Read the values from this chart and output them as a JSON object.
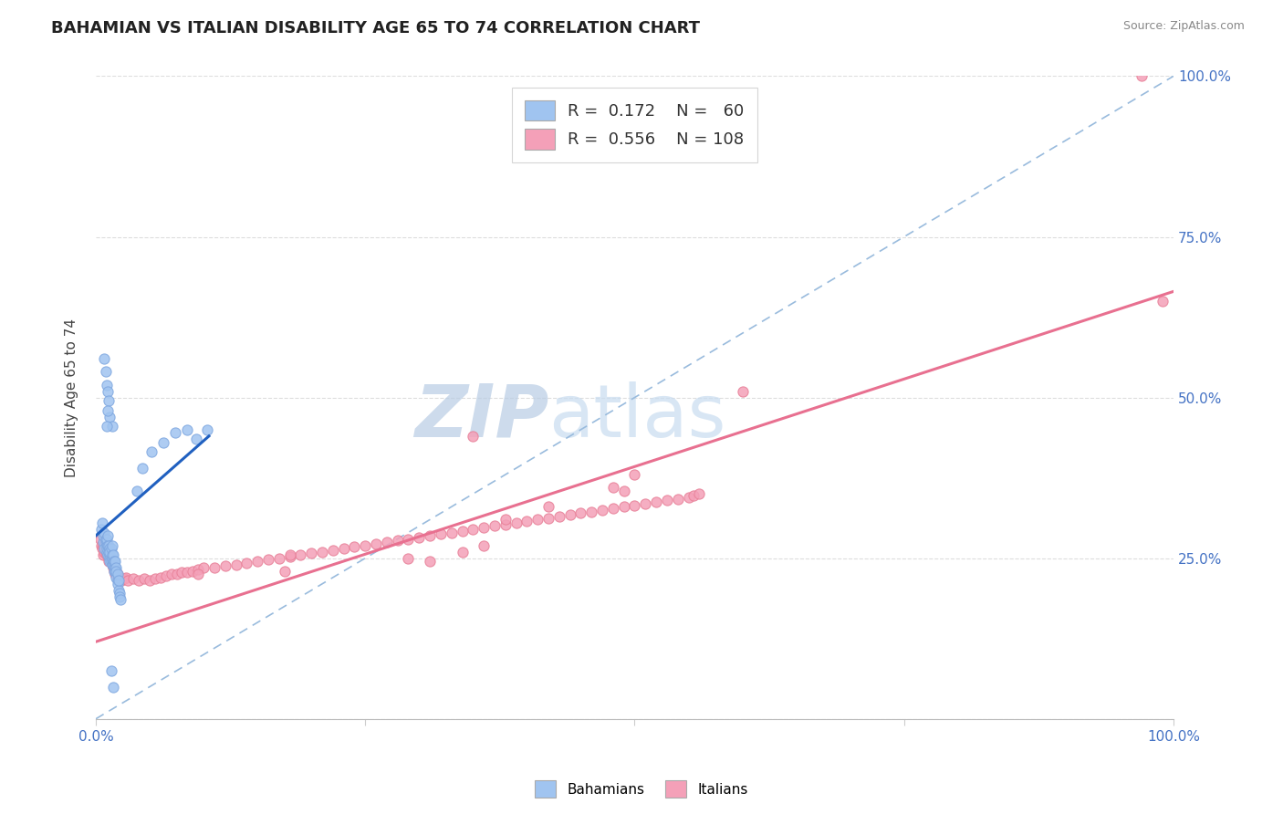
{
  "title": "BAHAMIAN VS ITALIAN DISABILITY AGE 65 TO 74 CORRELATION CHART",
  "source": "Source: ZipAtlas.com",
  "ylabel": "Disability Age 65 to 74",
  "xlim": [
    0.0,
    1.0
  ],
  "ylim": [
    0.0,
    1.0
  ],
  "legend_blue_R": "0.172",
  "legend_blue_N": "60",
  "legend_pink_R": "0.556",
  "legend_pink_N": "108",
  "blue_color": "#A0C4F0",
  "pink_color": "#F4A0B8",
  "blue_edge_color": "#80A8E0",
  "pink_edge_color": "#E88098",
  "blue_line_color": "#2060C0",
  "pink_line_color": "#E87090",
  "ref_line_color": "#99BBDD",
  "watermark_color": "#C8DCF0",
  "background_color": "#FFFFFF",
  "title_fontsize": 13,
  "grid_color": "#DDDDDD",
  "tick_color": "#4472C4",
  "blue_trend_x0": 0.0,
  "blue_trend_y0": 0.285,
  "blue_trend_x1": 0.105,
  "blue_trend_y1": 0.44,
  "pink_trend_x0": 0.0,
  "pink_trend_y0": 0.12,
  "pink_trend_x1": 1.0,
  "pink_trend_y1": 0.665,
  "blue_scatter_x": [
    0.005,
    0.006,
    0.007,
    0.007,
    0.008,
    0.008,
    0.009,
    0.009,
    0.01,
    0.01,
    0.01,
    0.01,
    0.011,
    0.011,
    0.011,
    0.012,
    0.012,
    0.012,
    0.013,
    0.013,
    0.013,
    0.013,
    0.013,
    0.014,
    0.014,
    0.014,
    0.015,
    0.015,
    0.015,
    0.015,
    0.016,
    0.016,
    0.016,
    0.017,
    0.017,
    0.017,
    0.018,
    0.018,
    0.018,
    0.019,
    0.019,
    0.019,
    0.02,
    0.02,
    0.02,
    0.021,
    0.021,
    0.022,
    0.022,
    0.023,
    0.038,
    0.043,
    0.052,
    0.063,
    0.074,
    0.085,
    0.093,
    0.103,
    0.016,
    0.014
  ],
  "blue_scatter_y": [
    0.295,
    0.305,
    0.275,
    0.285,
    0.265,
    0.29,
    0.275,
    0.28,
    0.27,
    0.28,
    0.26,
    0.265,
    0.27,
    0.255,
    0.285,
    0.265,
    0.26,
    0.27,
    0.255,
    0.265,
    0.25,
    0.245,
    0.26,
    0.25,
    0.245,
    0.265,
    0.24,
    0.25,
    0.255,
    0.27,
    0.245,
    0.24,
    0.255,
    0.235,
    0.245,
    0.23,
    0.235,
    0.23,
    0.245,
    0.235,
    0.22,
    0.23,
    0.215,
    0.225,
    0.21,
    0.2,
    0.215,
    0.195,
    0.19,
    0.185,
    0.355,
    0.39,
    0.415,
    0.43,
    0.445,
    0.45,
    0.435,
    0.45,
    0.05,
    0.075
  ],
  "blue_outlier_x": [
    0.008,
    0.01,
    0.011,
    0.012,
    0.013,
    0.015,
    0.009,
    0.011,
    0.01
  ],
  "blue_outlier_y": [
    0.56,
    0.52,
    0.51,
    0.495,
    0.47,
    0.455,
    0.54,
    0.48,
    0.455
  ],
  "pink_scatter_x": [
    0.004,
    0.005,
    0.006,
    0.007,
    0.007,
    0.008,
    0.008,
    0.009,
    0.009,
    0.01,
    0.01,
    0.01,
    0.011,
    0.011,
    0.012,
    0.012,
    0.013,
    0.013,
    0.014,
    0.014,
    0.015,
    0.016,
    0.017,
    0.018,
    0.019,
    0.02,
    0.022,
    0.024,
    0.026,
    0.028,
    0.03,
    0.035,
    0.04,
    0.045,
    0.05,
    0.055,
    0.06,
    0.065,
    0.07,
    0.075,
    0.08,
    0.085,
    0.09,
    0.095,
    0.1,
    0.11,
    0.12,
    0.13,
    0.14,
    0.15,
    0.16,
    0.17,
    0.18,
    0.19,
    0.2,
    0.21,
    0.22,
    0.23,
    0.24,
    0.25,
    0.26,
    0.27,
    0.28,
    0.29,
    0.3,
    0.31,
    0.32,
    0.33,
    0.34,
    0.35,
    0.36,
    0.37,
    0.38,
    0.39,
    0.4,
    0.41,
    0.42,
    0.43,
    0.44,
    0.45,
    0.46,
    0.47,
    0.48,
    0.49,
    0.5,
    0.51,
    0.52,
    0.53,
    0.54,
    0.55,
    0.555,
    0.56,
    0.48,
    0.49,
    0.5,
    0.42,
    0.38,
    0.36,
    0.34,
    0.31,
    0.29,
    0.18,
    0.175,
    0.095,
    0.97,
    0.99,
    0.6,
    0.35
  ],
  "pink_scatter_y": [
    0.28,
    0.27,
    0.265,
    0.255,
    0.27,
    0.26,
    0.275,
    0.26,
    0.265,
    0.255,
    0.265,
    0.27,
    0.255,
    0.26,
    0.25,
    0.245,
    0.255,
    0.26,
    0.245,
    0.25,
    0.24,
    0.235,
    0.23,
    0.225,
    0.23,
    0.225,
    0.22,
    0.215,
    0.218,
    0.22,
    0.215,
    0.218,
    0.215,
    0.218,
    0.215,
    0.218,
    0.22,
    0.222,
    0.225,
    0.225,
    0.228,
    0.228,
    0.23,
    0.232,
    0.235,
    0.235,
    0.238,
    0.24,
    0.242,
    0.245,
    0.248,
    0.25,
    0.252,
    0.255,
    0.258,
    0.26,
    0.262,
    0.265,
    0.268,
    0.27,
    0.272,
    0.275,
    0.278,
    0.28,
    0.282,
    0.285,
    0.288,
    0.29,
    0.292,
    0.295,
    0.298,
    0.3,
    0.302,
    0.305,
    0.308,
    0.31,
    0.312,
    0.315,
    0.318,
    0.32,
    0.322,
    0.325,
    0.328,
    0.33,
    0.332,
    0.335,
    0.338,
    0.34,
    0.342,
    0.345,
    0.348,
    0.35,
    0.36,
    0.355,
    0.38,
    0.33,
    0.31,
    0.27,
    0.26,
    0.245,
    0.25,
    0.255,
    0.23,
    0.225,
    1.0,
    0.65,
    0.51,
    0.44
  ]
}
